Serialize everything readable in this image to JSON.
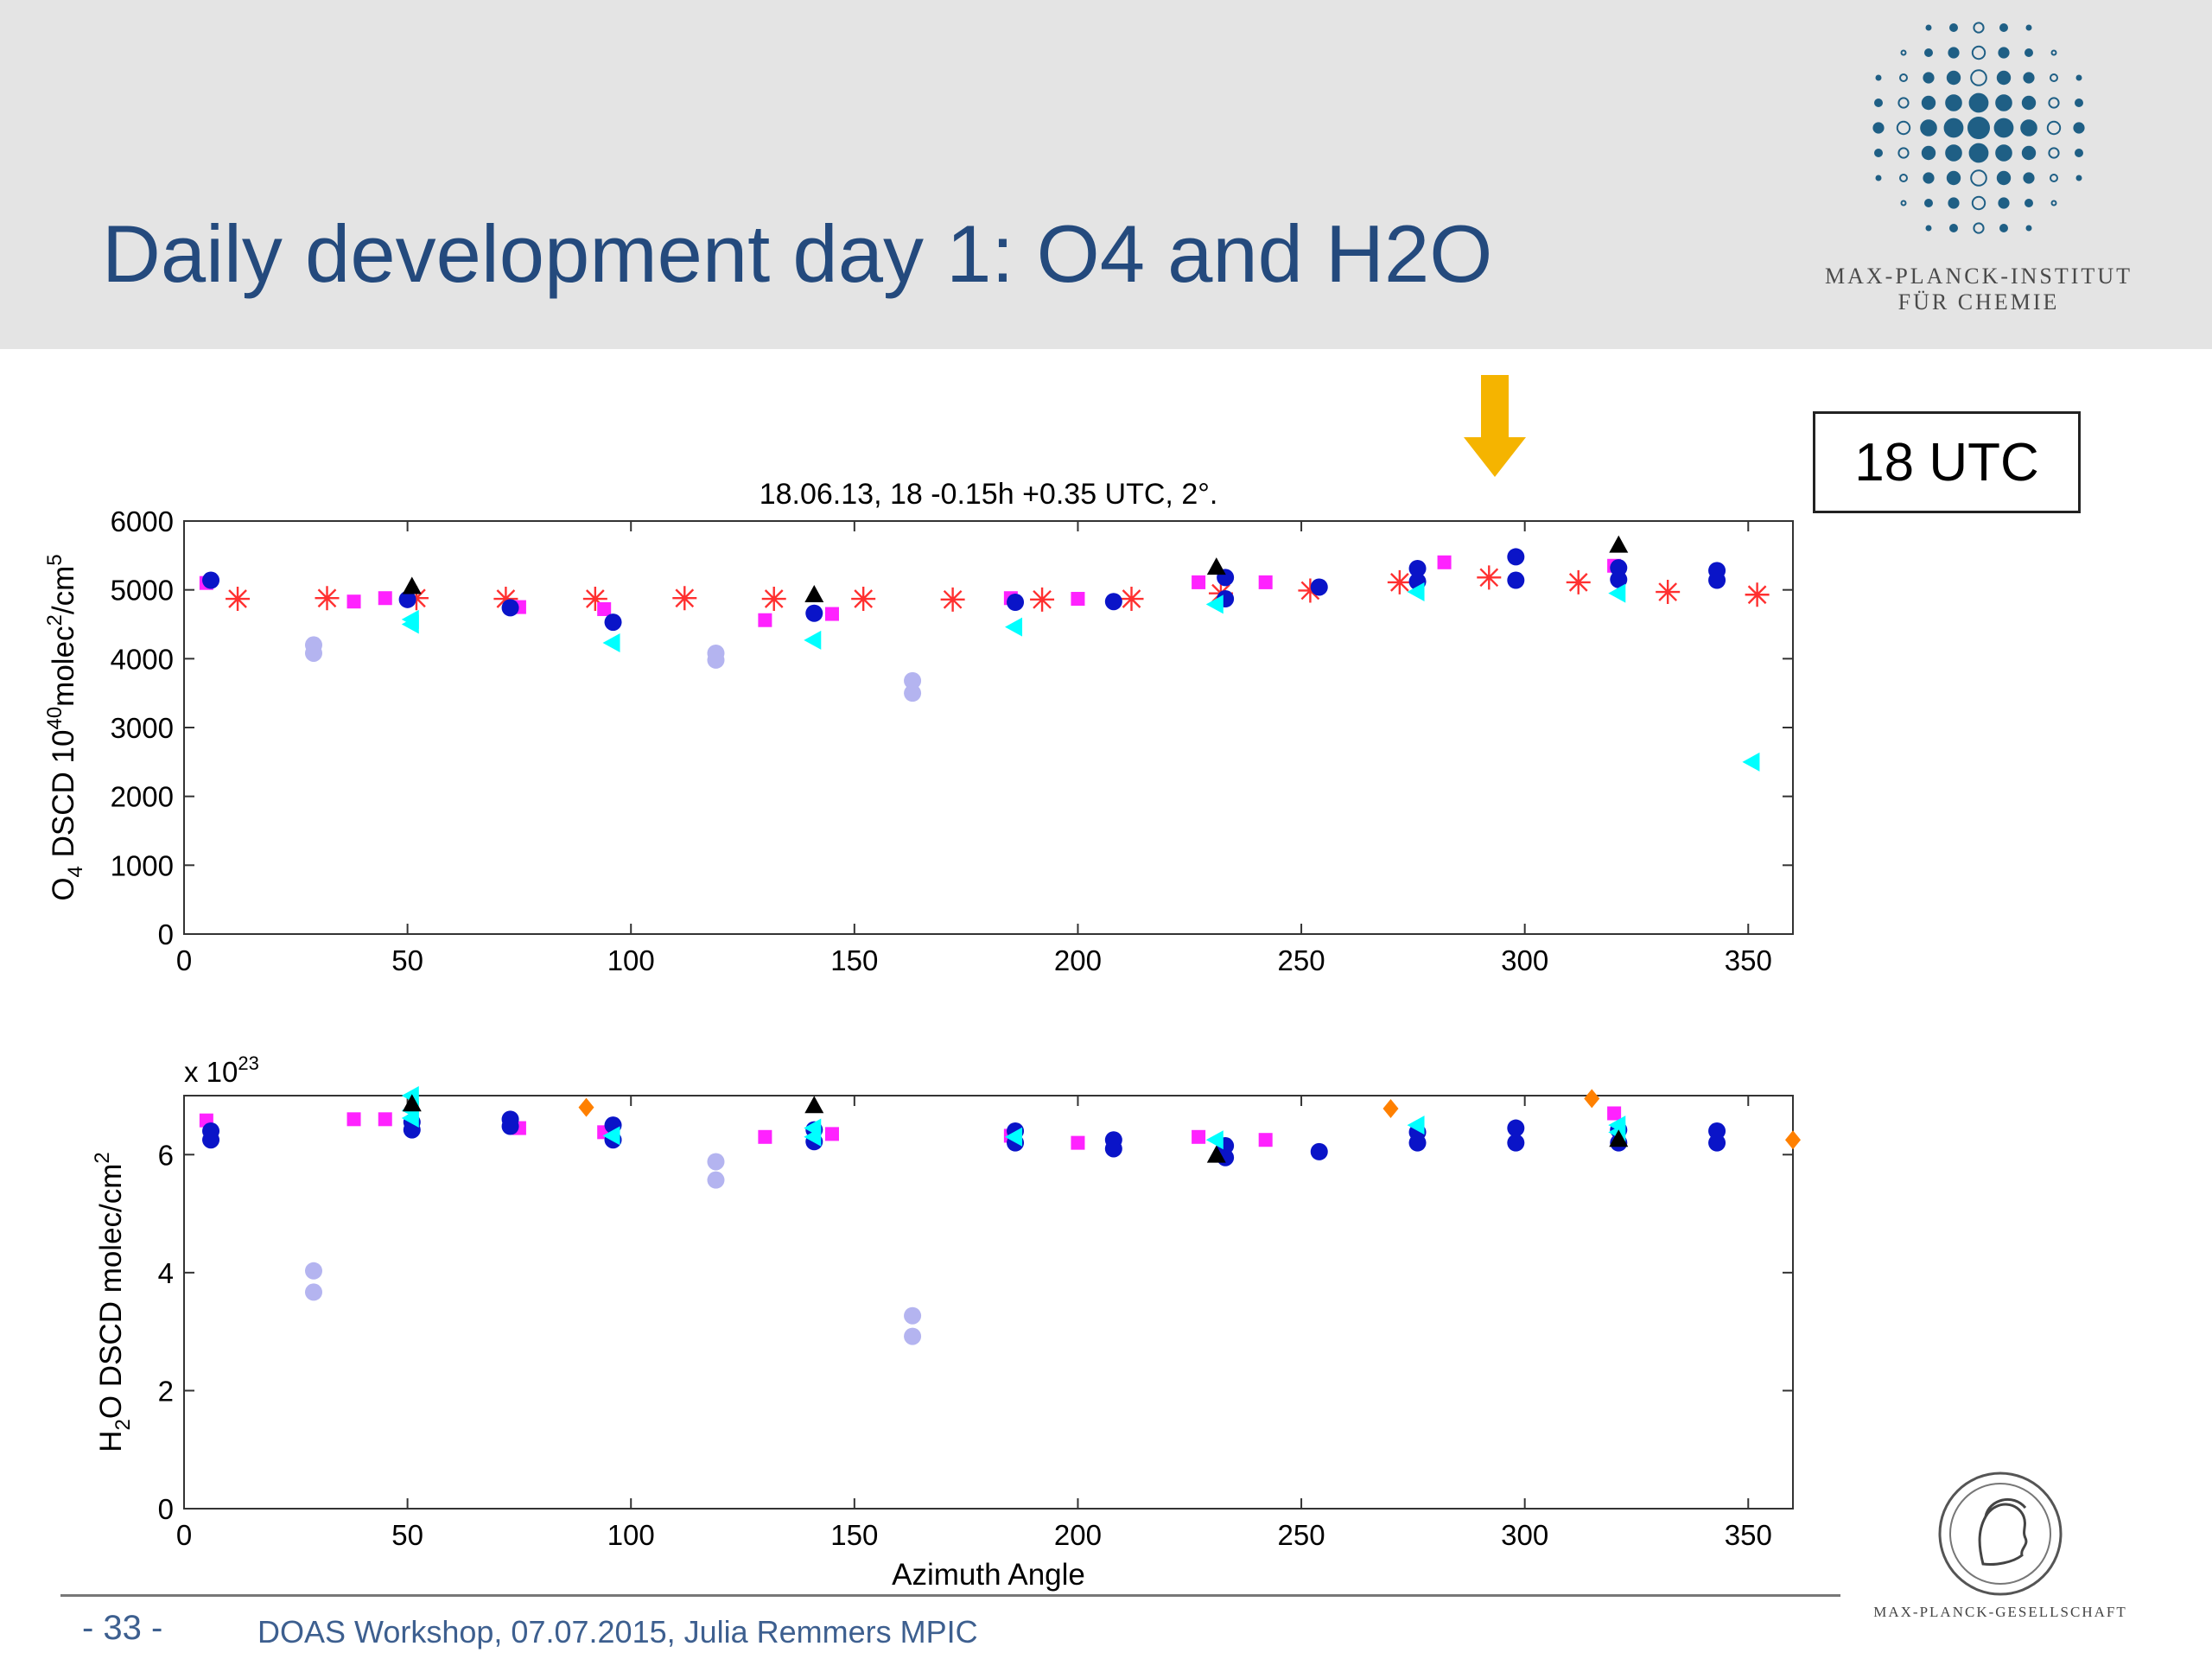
{
  "header": {
    "title": "Daily development day 1: O4 and H2O",
    "institute_line1": "MAX-PLANCK-INSTITUT",
    "institute_line2": "FÜR CHEMIE"
  },
  "label_box": "18 UTC",
  "footer": {
    "page": "- 33 -",
    "text": "DOAS Workshop, 07.07.2015, Julia Remmers MPIC",
    "society": "MAX-PLANCK-GESELLSCHAFT"
  },
  "colors": {
    "title": "#244a7d",
    "arrow": "#f5b400",
    "logo": "#1f5f85"
  },
  "icons": {
    "arrow": "down-arrow-icon",
    "logo": "mpi-dot-logo-icon",
    "seal": "minerva-seal-icon"
  },
  "chart_data": [
    {
      "type": "scatter",
      "title": "18.06.13, 18 -0.15h +0.35 UTC, 2°.",
      "xlabel": "",
      "ylabel_parts": [
        "O",
        "4",
        " DSCD 10",
        "40",
        "molec",
        "2",
        "/cm",
        "5"
      ],
      "xlim": [
        0,
        360
      ],
      "ylim": [
        0,
        6000
      ],
      "xticks": [
        0,
        50,
        100,
        150,
        200,
        250,
        300,
        350
      ],
      "yticks": [
        0,
        1000,
        2000,
        3000,
        4000,
        5000,
        6000
      ],
      "grid": false,
      "series": [
        {
          "marker": "star",
          "color": "#ff3030",
          "points": [
            [
              12,
              4870
            ],
            [
              32,
              4880
            ],
            [
              52,
              4880
            ],
            [
              72,
              4870
            ],
            [
              92,
              4870
            ],
            [
              112,
              4880
            ],
            [
              132,
              4870
            ],
            [
              152,
              4870
            ],
            [
              172,
              4860
            ],
            [
              192,
              4860
            ],
            [
              212,
              4870
            ],
            [
              232,
              4950
            ],
            [
              252,
              4990
            ],
            [
              272,
              5110
            ],
            [
              292,
              5180
            ],
            [
              312,
              5110
            ],
            [
              332,
              4970
            ],
            [
              352,
              4930
            ]
          ]
        },
        {
          "marker": "square",
          "color": "#ff22ff",
          "points": [
            [
              5,
              5100
            ],
            [
              38,
              4830
            ],
            [
              45,
              4880
            ],
            [
              75,
              4750
            ],
            [
              94,
              4720
            ],
            [
              130,
              4560
            ],
            [
              145,
              4650
            ],
            [
              185,
              4880
            ],
            [
              200,
              4870
            ],
            [
              227,
              5110
            ],
            [
              242,
              5110
            ],
            [
              282,
              5400
            ],
            [
              320,
              5350
            ]
          ]
        },
        {
          "marker": "circle",
          "color": "#0a14c8",
          "points": [
            [
              6,
              5140
            ],
            [
              50,
              4860
            ],
            [
              73,
              4740
            ],
            [
              96,
              4530
            ],
            [
              141,
              4660
            ],
            [
              186,
              4820
            ],
            [
              208,
              4830
            ],
            [
              233,
              5180
            ],
            [
              233,
              4870
            ],
            [
              254,
              5040
            ],
            [
              276,
              5310
            ],
            [
              276,
              5120
            ],
            [
              298,
              5480
            ],
            [
              298,
              5140
            ],
            [
              321,
              5320
            ],
            [
              321,
              5150
            ],
            [
              343,
              5280
            ],
            [
              343,
              5140
            ]
          ]
        },
        {
          "marker": "circle",
          "color": "#b4b4f0",
          "points": [
            [
              29,
              4200
            ],
            [
              29,
              4080
            ],
            [
              119,
              4080
            ],
            [
              119,
              3980
            ],
            [
              163,
              3680
            ],
            [
              163,
              3500
            ]
          ]
        },
        {
          "marker": "triangle-left",
          "color": "#00ffff",
          "points": [
            [
              51,
              4570
            ],
            [
              51,
              4500
            ],
            [
              96,
              4230
            ],
            [
              141,
              4270
            ],
            [
              186,
              4460
            ],
            [
              231,
              4790
            ],
            [
              276,
              4970
            ],
            [
              321,
              4950
            ],
            [
              351,
              2500
            ]
          ]
        },
        {
          "marker": "triangle-up",
          "color": "#000000",
          "points": [
            [
              51,
              5040
            ],
            [
              141,
              4920
            ],
            [
              231,
              5320
            ],
            [
              321,
              5640
            ]
          ]
        }
      ]
    },
    {
      "type": "scatter",
      "title": "",
      "xlabel": "Azimuth Angle",
      "ylabel_parts": [
        "H",
        "2",
        "O DSCD molec/cm",
        "2"
      ],
      "exponent_label": "x 10",
      "exponent_value": "23",
      "xlim": [
        0,
        360
      ],
      "ylim": [
        0,
        7
      ],
      "xticks": [
        0,
        50,
        100,
        150,
        200,
        250,
        300,
        350
      ],
      "yticks": [
        0,
        2,
        4,
        6
      ],
      "grid": false,
      "series": [
        {
          "marker": "diamond",
          "color": "#ff8000",
          "points": [
            [
              90,
              6.8
            ],
            [
              270,
              6.78
            ],
            [
              315,
              6.95
            ],
            [
              360,
              6.25
            ]
          ]
        },
        {
          "marker": "square",
          "color": "#ff22ff",
          "points": [
            [
              5,
              6.58
            ],
            [
              38,
              6.6
            ],
            [
              45,
              6.6
            ],
            [
              75,
              6.45
            ],
            [
              94,
              6.38
            ],
            [
              130,
              6.3
            ],
            [
              145,
              6.35
            ],
            [
              185,
              6.32
            ],
            [
              200,
              6.2
            ],
            [
              227,
              6.3
            ],
            [
              242,
              6.25
            ],
            [
              320,
              6.7
            ]
          ]
        },
        {
          "marker": "circle",
          "color": "#0a14c8",
          "points": [
            [
              6,
              6.4
            ],
            [
              6,
              6.25
            ],
            [
              51,
              6.55
            ],
            [
              51,
              6.42
            ],
            [
              73,
              6.6
            ],
            [
              73,
              6.48
            ],
            [
              96,
              6.5
            ],
            [
              96,
              6.25
            ],
            [
              141,
              6.42
            ],
            [
              141,
              6.22
            ],
            [
              186,
              6.4
            ],
            [
              186,
              6.2
            ],
            [
              208,
              6.25
            ],
            [
              208,
              6.1
            ],
            [
              233,
              6.15
            ],
            [
              233,
              5.95
            ],
            [
              254,
              6.05
            ],
            [
              276,
              6.38
            ],
            [
              276,
              6.2
            ],
            [
              298,
              6.45
            ],
            [
              298,
              6.2
            ],
            [
              321,
              6.42
            ],
            [
              321,
              6.2
            ],
            [
              343,
              6.4
            ],
            [
              343,
              6.2
            ]
          ]
        },
        {
          "marker": "circle",
          "color": "#b4b4f0",
          "points": [
            [
              29,
              4.03
            ],
            [
              29,
              3.67
            ],
            [
              119,
              5.88
            ],
            [
              119,
              5.57
            ],
            [
              163,
              3.27
            ],
            [
              163,
              2.92
            ]
          ]
        },
        {
          "marker": "triangle-left",
          "color": "#00ffff",
          "points": [
            [
              51,
              7.0
            ],
            [
              51,
              6.75
            ],
            [
              51,
              6.62
            ],
            [
              96,
              6.32
            ],
            [
              141,
              6.45
            ],
            [
              141,
              6.3
            ],
            [
              186,
              6.3
            ],
            [
              231,
              6.25
            ],
            [
              276,
              6.5
            ],
            [
              321,
              6.5
            ],
            [
              321,
              6.38
            ]
          ]
        },
        {
          "marker": "triangle-up",
          "color": "#000000",
          "points": [
            [
              51,
              6.85
            ],
            [
              141,
              6.82
            ],
            [
              231,
              5.98
            ],
            [
              321,
              6.25
            ]
          ]
        }
      ]
    }
  ]
}
